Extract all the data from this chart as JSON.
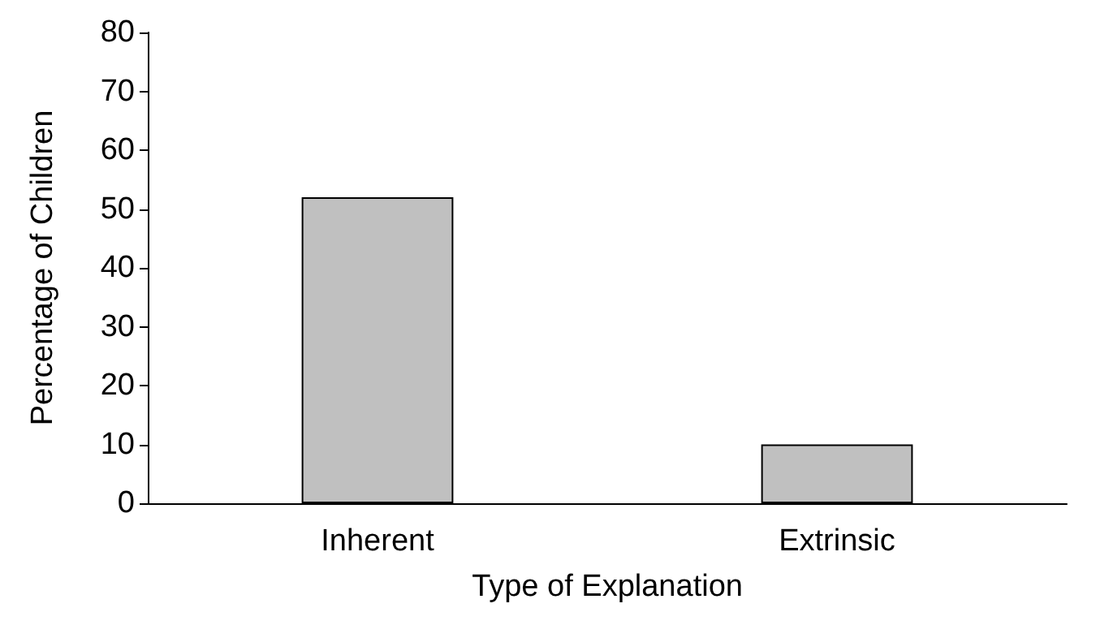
{
  "chart_data": {
    "type": "bar",
    "xlabel": "Type of Explanation",
    "ylabel": "Percentage of Children",
    "categories": [
      "Inherent",
      "Extrinsic"
    ],
    "values": [
      52,
      10
    ],
    "color": "#c0c0c0",
    "ylim": [
      0,
      80
    ],
    "yticks": [
      0,
      10,
      20,
      30,
      40,
      50,
      60,
      70,
      80
    ],
    "grid": false
  }
}
